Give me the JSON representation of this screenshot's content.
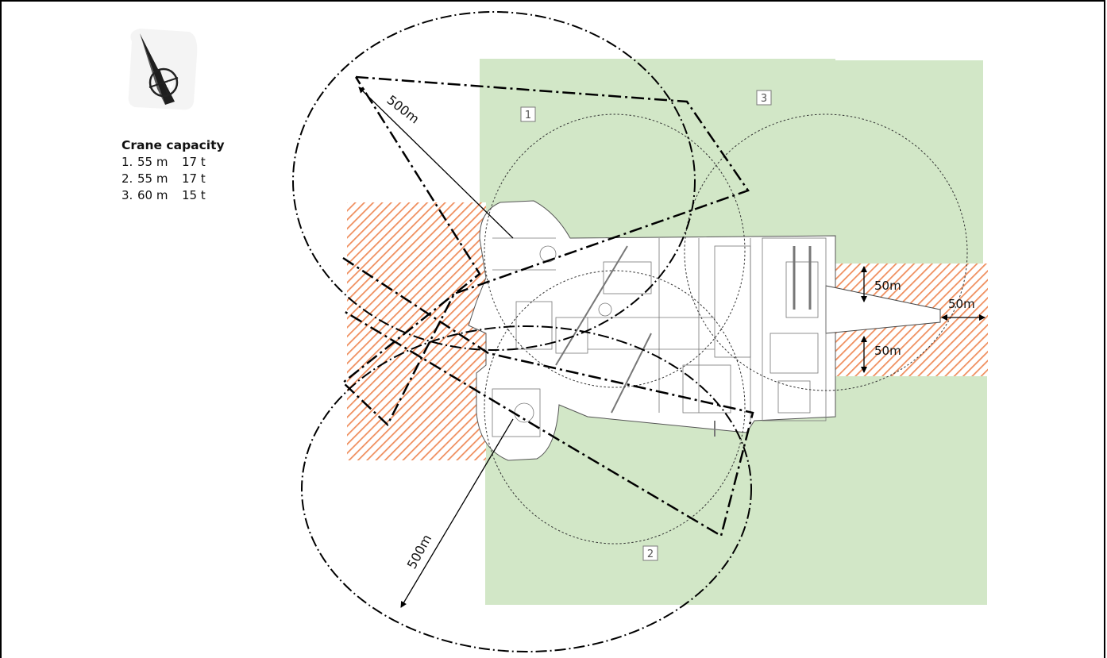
{
  "legend": {
    "title": "Crane capacity",
    "cranes": [
      {
        "num": "1.",
        "reach": "55 m",
        "capacity": "17 t"
      },
      {
        "num": "2.",
        "reach": "55 m",
        "capacity": "17 t"
      },
      {
        "num": "3.",
        "reach": "60 m",
        "capacity": "15 t"
      }
    ]
  },
  "crane_labels": [
    "1",
    "2",
    "3"
  ],
  "dimensions": {
    "radius_top": "500m",
    "radius_bottom": "500m",
    "side_upper": "50m",
    "side_lower": "50m",
    "tip": "50m"
  },
  "colors": {
    "green_zone": "#d2e7c7",
    "hatch": "#ef8d5c",
    "line": "#000000",
    "label_box": "#7a7a7a"
  },
  "icons": {
    "north": "north-arrow-icon"
  }
}
